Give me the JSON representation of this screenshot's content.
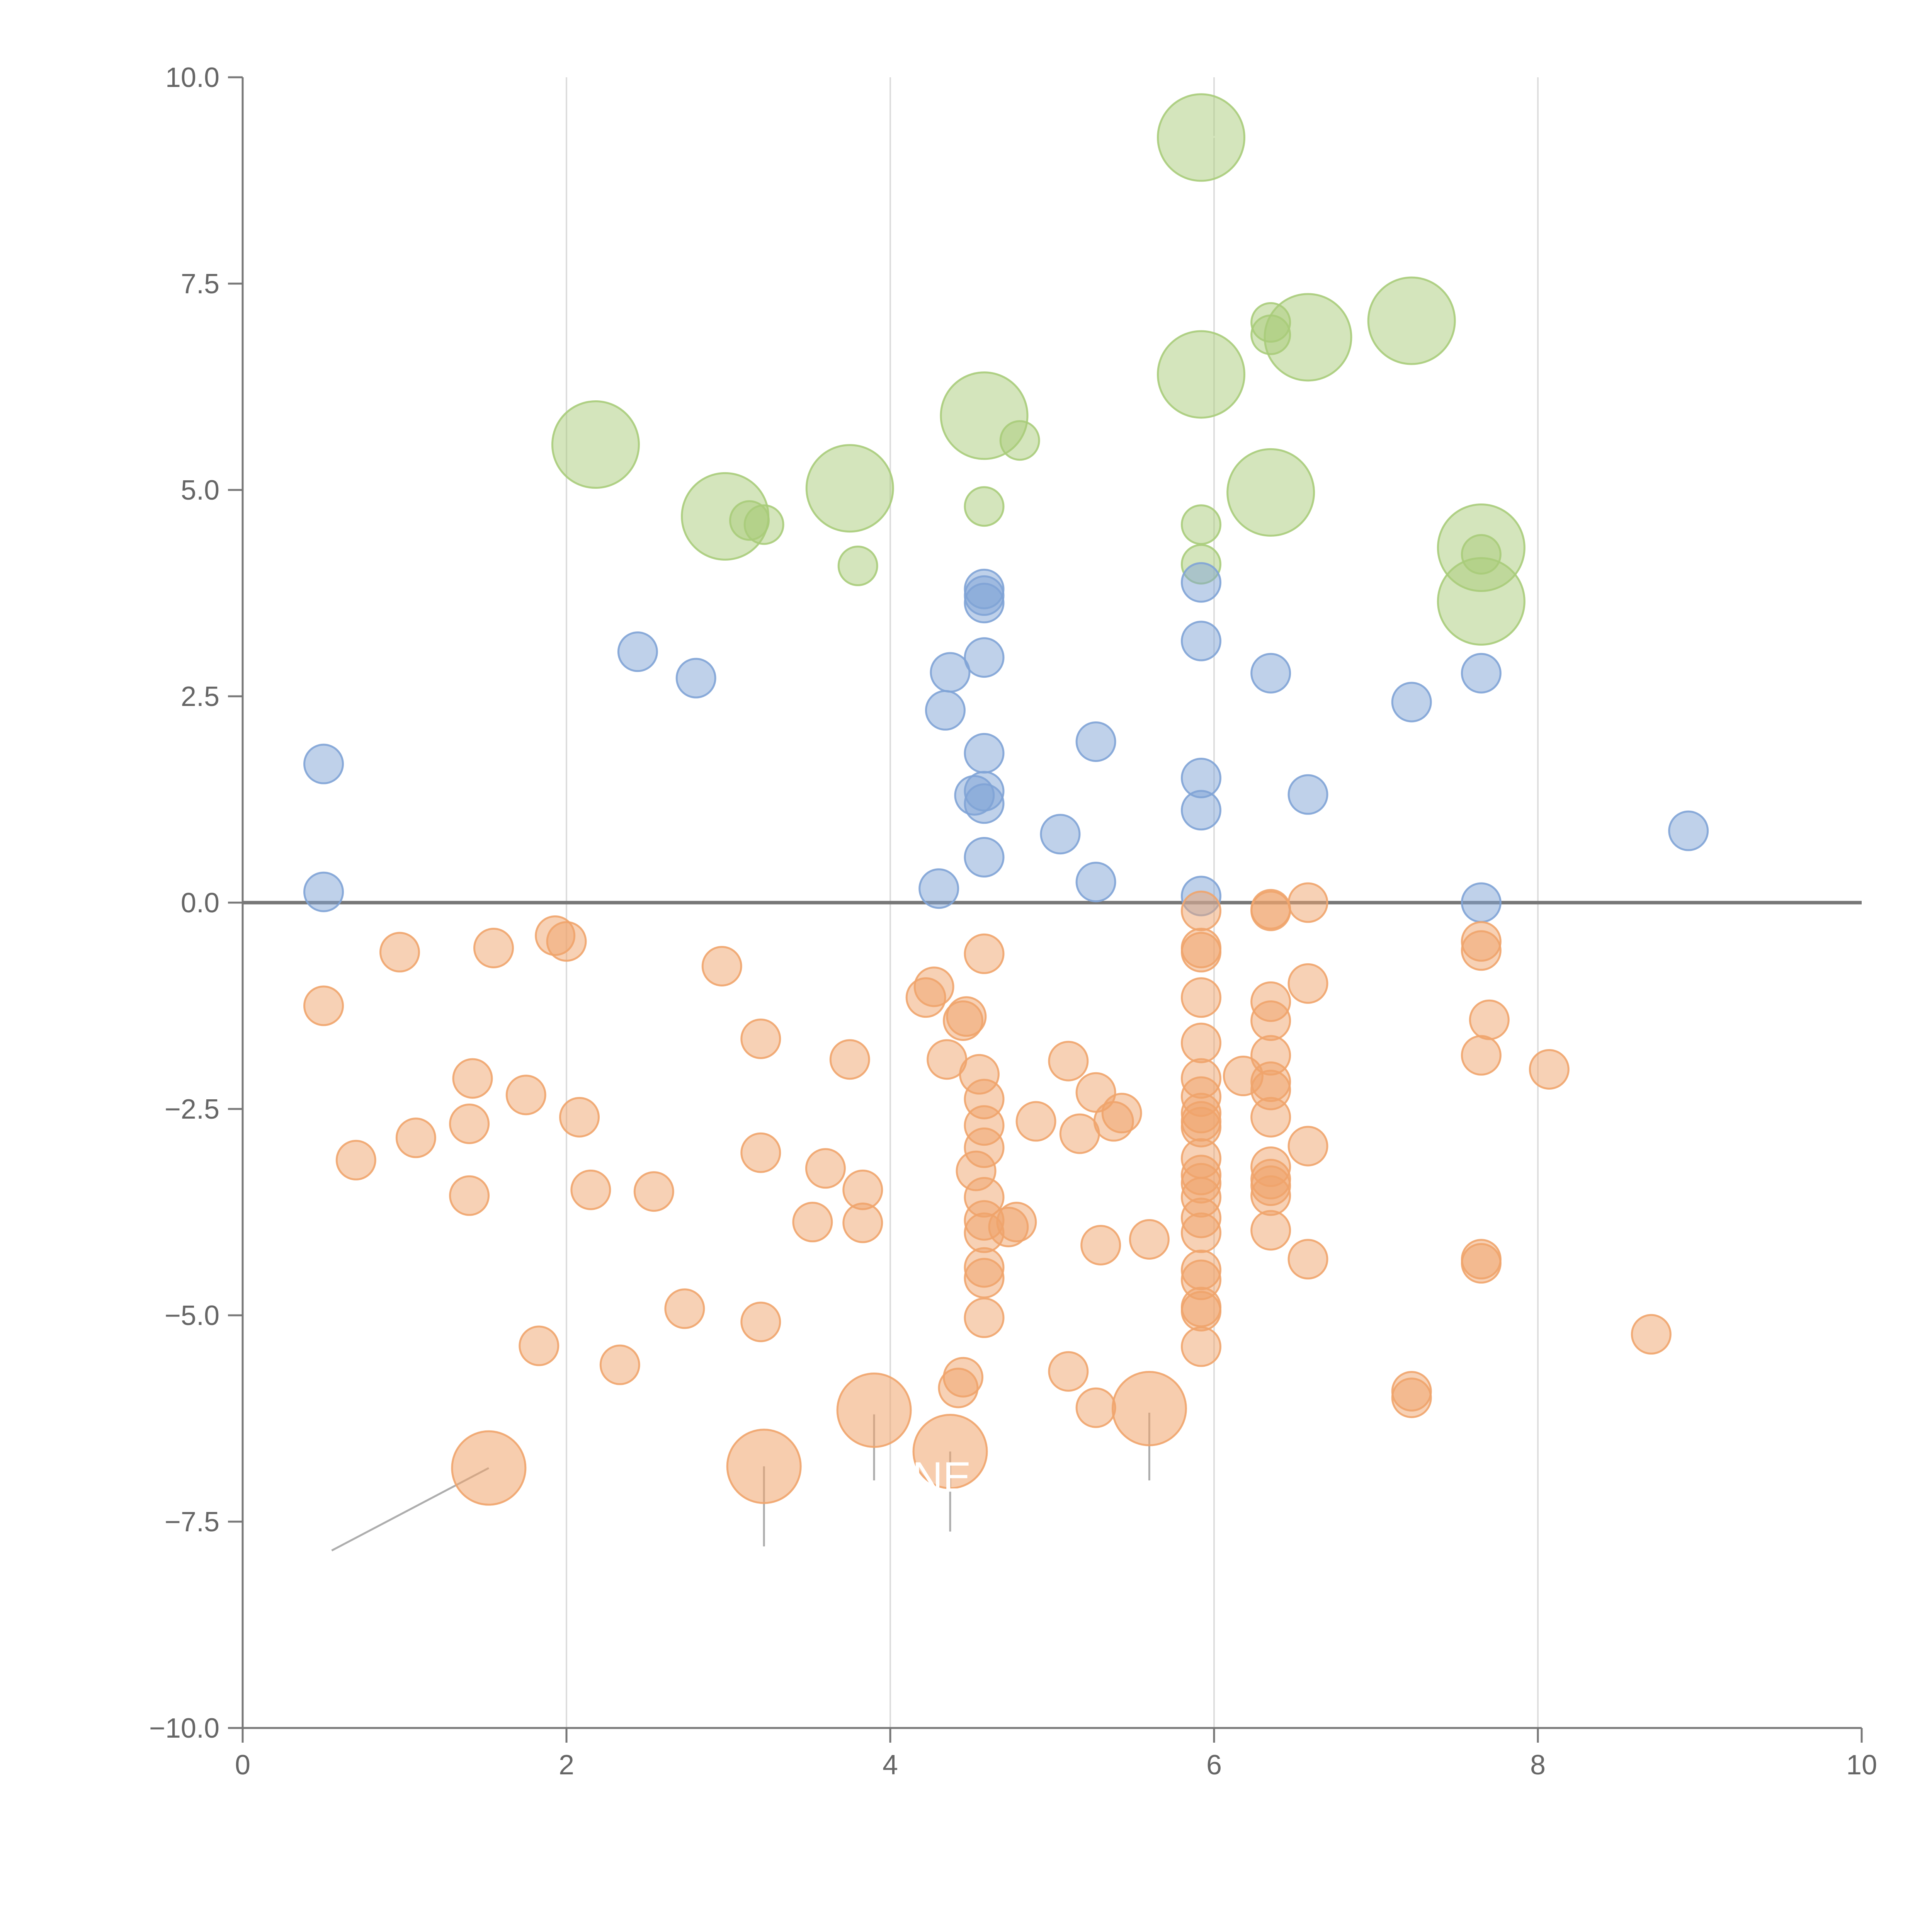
{
  "chart_data": {
    "type": "scatter",
    "title": "",
    "xlabel": "",
    "ylabel": "",
    "xlim": [
      0,
      10
    ],
    "ylim": [
      -10,
      10
    ],
    "x_ticks": [
      "0",
      "2",
      "4",
      "6",
      "8",
      "10"
    ],
    "y_ticks": [
      "−10.0",
      "−7.5",
      "−5.0",
      "−2.5",
      "0.0",
      "2.5",
      "5.0",
      "7.5",
      "10.0"
    ],
    "grid": "vertical lines at 2, 4, 6, 8",
    "legend": "none",
    "colors": {
      "green": "#a9cc7a",
      "blue": "#7fa3d6",
      "orange": "#f0a46c",
      "axis": "#777777",
      "grid": "#dddddd"
    },
    "annotations": [
      {
        "text": "NE",
        "x": 4.35,
        "y": -6.95
      }
    ],
    "series": [
      {
        "name": "green",
        "color": "#a9cc7a",
        "points": [
          [
            5.92,
            9.27,
            2
          ],
          [
            2.18,
            5.55,
            2
          ],
          [
            2.98,
            4.68,
            2
          ],
          [
            3.13,
            4.63,
            1
          ],
          [
            3.22,
            4.58,
            1
          ],
          [
            3.75,
            5.02,
            2
          ],
          [
            3.8,
            4.08,
            1
          ],
          [
            4.58,
            5.9,
            2
          ],
          [
            4.8,
            5.6,
            1
          ],
          [
            4.58,
            4.8,
            1
          ],
          [
            5.92,
            6.4,
            2
          ],
          [
            5.92,
            4.58,
            1
          ],
          [
            5.92,
            4.1,
            1
          ],
          [
            6.35,
            7.03,
            1
          ],
          [
            6.35,
            6.88,
            1
          ],
          [
            6.58,
            6.85,
            2
          ],
          [
            6.35,
            4.97,
            2
          ],
          [
            7.22,
            7.05,
            2
          ],
          [
            7.65,
            4.3,
            2
          ],
          [
            7.65,
            4.22,
            1
          ],
          [
            7.65,
            3.65,
            2
          ]
        ]
      },
      {
        "name": "blue",
        "color": "#7fa3d6",
        "points": [
          [
            0.5,
            1.68
          ],
          [
            0.5,
            0.13
          ],
          [
            2.44,
            3.04
          ],
          [
            2.8,
            2.72
          ],
          [
            4.37,
            2.79
          ],
          [
            4.34,
            2.33
          ],
          [
            4.3,
            0.17
          ],
          [
            4.58,
            3.8
          ],
          [
            4.58,
            3.72
          ],
          [
            4.58,
            3.63
          ],
          [
            4.58,
            2.97
          ],
          [
            4.58,
            1.81
          ],
          [
            4.58,
            1.35
          ],
          [
            4.52,
            1.3
          ],
          [
            4.58,
            1.2
          ],
          [
            4.58,
            0.55
          ],
          [
            5.05,
            0.83
          ],
          [
            5.27,
            1.95
          ],
          [
            5.27,
            0.25
          ],
          [
            5.92,
            3.88
          ],
          [
            5.92,
            3.17
          ],
          [
            5.92,
            1.51
          ],
          [
            5.92,
            1.12
          ],
          [
            5.92,
            0.08
          ],
          [
            6.35,
            2.78
          ],
          [
            6.58,
            1.31
          ],
          [
            7.22,
            2.43
          ],
          [
            7.65,
            2.78
          ],
          [
            7.65,
            0.0
          ],
          [
            8.93,
            0.87
          ]
        ]
      },
      {
        "name": "orange",
        "color": "#f0a46c",
        "points": [
          [
            0.5,
            -1.25
          ],
          [
            0.7,
            -3.12
          ],
          [
            0.97,
            -0.6
          ],
          [
            1.07,
            -2.85
          ],
          [
            1.4,
            -2.68
          ],
          [
            1.42,
            -2.13
          ],
          [
            1.4,
            -3.55
          ],
          [
            1.55,
            -0.55
          ],
          [
            1.75,
            -2.33
          ],
          [
            1.83,
            -5.37
          ],
          [
            1.93,
            -0.4
          ],
          [
            2.0,
            -0.47
          ],
          [
            2.08,
            -2.6
          ],
          [
            2.15,
            -3.48
          ],
          [
            2.33,
            -5.6
          ],
          [
            2.54,
            -3.5
          ],
          [
            2.73,
            -4.92
          ],
          [
            2.96,
            -0.77
          ],
          [
            3.2,
            -1.65
          ],
          [
            3.2,
            -3.03
          ],
          [
            3.2,
            -5.08
          ],
          [
            3.52,
            -3.87
          ],
          [
            3.6,
            -3.22
          ],
          [
            3.75,
            -1.9
          ],
          [
            3.83,
            -3.48
          ],
          [
            3.83,
            -3.88
          ],
          [
            4.22,
            -1.15
          ],
          [
            4.27,
            -1.02
          ],
          [
            4.45,
            -1.43
          ],
          [
            4.47,
            -1.38
          ],
          [
            4.35,
            -1.9
          ],
          [
            4.53,
            -3.25
          ],
          [
            4.45,
            -5.75
          ],
          [
            4.42,
            -5.88
          ],
          [
            4.58,
            -0.62
          ],
          [
            4.55,
            -2.08
          ],
          [
            4.58,
            -2.38
          ],
          [
            4.58,
            -2.7
          ],
          [
            4.58,
            -2.97
          ],
          [
            4.58,
            -3.57
          ],
          [
            4.58,
            -3.85
          ],
          [
            4.58,
            -4.0
          ],
          [
            4.58,
            -4.42
          ],
          [
            4.58,
            -4.55
          ],
          [
            4.58,
            -5.03
          ],
          [
            4.73,
            -3.93
          ],
          [
            4.78,
            -3.87
          ],
          [
            4.9,
            -2.65
          ],
          [
            5.1,
            -1.92
          ],
          [
            5.1,
            -5.68
          ],
          [
            5.17,
            -2.8
          ],
          [
            5.27,
            -2.3
          ],
          [
            5.27,
            -6.12
          ],
          [
            5.3,
            -4.15
          ],
          [
            5.38,
            -2.65
          ],
          [
            5.43,
            -2.55
          ],
          [
            5.6,
            -4.08
          ],
          [
            5.92,
            -0.1
          ],
          [
            5.92,
            -0.55
          ],
          [
            5.92,
            -0.6
          ],
          [
            5.92,
            -1.15
          ],
          [
            5.92,
            -1.7
          ],
          [
            5.92,
            -2.13
          ],
          [
            5.92,
            -2.35
          ],
          [
            5.92,
            -2.55
          ],
          [
            5.92,
            -2.65
          ],
          [
            5.92,
            -2.72
          ],
          [
            5.92,
            -3.1
          ],
          [
            5.92,
            -3.3
          ],
          [
            5.92,
            -3.4
          ],
          [
            5.92,
            -3.57
          ],
          [
            5.92,
            -3.82
          ],
          [
            5.92,
            -4.0
          ],
          [
            5.92,
            -4.45
          ],
          [
            5.92,
            -4.57
          ],
          [
            5.92,
            -4.9
          ],
          [
            5.92,
            -4.95
          ],
          [
            5.92,
            -5.38
          ],
          [
            6.18,
            -2.1
          ],
          [
            6.35,
            -0.08
          ],
          [
            6.35,
            -0.1
          ],
          [
            6.35,
            -1.2
          ],
          [
            6.35,
            -1.43
          ],
          [
            6.35,
            -1.85
          ],
          [
            6.35,
            -2.17
          ],
          [
            6.35,
            -2.27
          ],
          [
            6.35,
            -2.6
          ],
          [
            6.35,
            -3.2
          ],
          [
            6.35,
            -3.35
          ],
          [
            6.35,
            -3.43
          ],
          [
            6.35,
            -3.55
          ],
          [
            6.35,
            -3.97
          ],
          [
            6.58,
            0.0
          ],
          [
            6.58,
            -0.98
          ],
          [
            6.58,
            -2.95
          ],
          [
            6.58,
            -4.32
          ],
          [
            7.22,
            -5.92
          ],
          [
            7.22,
            -6.0
          ],
          [
            7.65,
            -0.47
          ],
          [
            7.65,
            -0.58
          ],
          [
            7.7,
            -1.42
          ],
          [
            7.65,
            -1.85
          ],
          [
            7.65,
            -4.32
          ],
          [
            7.65,
            -4.37
          ],
          [
            8.07,
            -2.02
          ],
          [
            8.7,
            -5.23
          ]
        ],
        "large_points": [
          [
            1.52,
            -6.85
          ],
          [
            3.22,
            -6.83
          ],
          [
            3.9,
            -6.15
          ],
          [
            4.37,
            -6.65
          ],
          [
            5.6,
            -6.13
          ]
        ]
      }
    ]
  }
}
